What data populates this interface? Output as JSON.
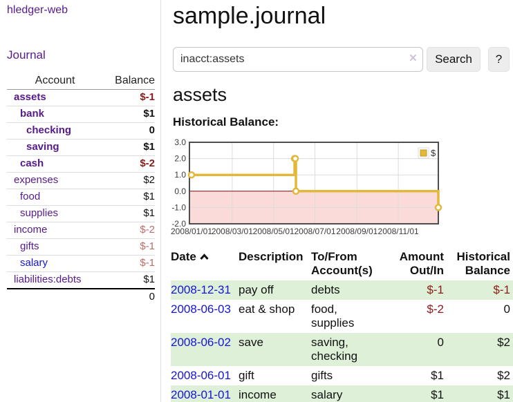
{
  "colors": {
    "link_purple": "#551a8b",
    "link_blue": "#1414dd",
    "negative_dark": "#8b1a1a",
    "negative_light": "#bd6a6a",
    "row_green": "#dff0d8",
    "chart_gold": "#e3b83a",
    "chart_negative_bg": "#fbdada",
    "chart_zero_line": "#7a0c0c"
  },
  "app": {
    "brand": "hledger-web"
  },
  "sidebar": {
    "nav_journal": "Journal",
    "accounts_table": {
      "account_header": "Account",
      "balance_header": "Balance",
      "rows": [
        {
          "name": "assets",
          "balance": "$-1",
          "level": 1,
          "strong": true
        },
        {
          "name": "bank",
          "balance": "$1",
          "level": 2,
          "strong": true
        },
        {
          "name": "checking",
          "balance": "0",
          "level": 3,
          "strong": true
        },
        {
          "name": "saving",
          "balance": "$1",
          "level": 3,
          "strong": true
        },
        {
          "name": "cash",
          "balance": "$-2",
          "level": 2,
          "strong": true
        },
        {
          "name": "expenses",
          "balance": "$2",
          "level": 1,
          "strong": false
        },
        {
          "name": "food",
          "balance": "$1",
          "level": 2,
          "strong": false
        },
        {
          "name": "supplies",
          "balance": "$1",
          "level": 2,
          "strong": false
        },
        {
          "name": "income",
          "balance": "$-2",
          "level": 1,
          "strong": false
        },
        {
          "name": "gifts",
          "balance": "$-1",
          "level": 2,
          "strong": false
        },
        {
          "name": "salary",
          "balance": "$-1",
          "level": 2,
          "strong": false,
          "link_color": "blue"
        },
        {
          "name": "liabilities:debts",
          "balance": "$1",
          "level": 1,
          "strong": false
        }
      ],
      "total": "0"
    }
  },
  "header": {
    "title": "sample.journal"
  },
  "search": {
    "value": "inacct:assets",
    "clear_icon": "×",
    "button_label": "Search",
    "help_label": "?"
  },
  "account_page": {
    "heading": "assets",
    "chart_label": "Historical Balance:"
  },
  "chart_data": {
    "type": "line",
    "step": true,
    "title": "Historical Balance:",
    "series": [
      {
        "name": "$",
        "points": [
          {
            "date": "2008-01-01",
            "value": 1
          },
          {
            "date": "2008-06-01",
            "value": 2
          },
          {
            "date": "2008-06-02",
            "value": 2
          },
          {
            "date": "2008-06-03",
            "value": 0
          },
          {
            "date": "2008-12-31",
            "value": -1
          }
        ]
      }
    ],
    "ylim": [
      -2,
      3
    ],
    "xlim": [
      "2008-01-01",
      "2008-12-31"
    ],
    "y_ticks": [
      "3.0",
      "2.0",
      "1.0",
      "0.0",
      "-1.0",
      "-2.0"
    ],
    "x_ticks": [
      "2008/01/01",
      "2008/03/01",
      "2008/05/01",
      "2008/07/01",
      "2008/09/01",
      "2008/11/01"
    ],
    "grid": true,
    "legend": {
      "position": "top-right",
      "label": "$"
    },
    "negative_region_shaded": true
  },
  "register_table": {
    "headers": [
      "Date",
      "Description",
      "To/From Account(s)",
      "Amount Out/In",
      "Historical Balance"
    ],
    "rows": [
      {
        "date": "2008-12-31",
        "description": "pay off",
        "accounts": "debts",
        "amount": "$-1",
        "balance": "$-1"
      },
      {
        "date": "2008-06-03",
        "description": "eat & shop",
        "accounts": "food, supplies",
        "amount": "$-2",
        "balance": "0"
      },
      {
        "date": "2008-06-02",
        "description": "save",
        "accounts": "saving, checking",
        "amount": "0",
        "balance": "$2"
      },
      {
        "date": "2008-06-01",
        "description": "gift",
        "accounts": "gifts",
        "amount": "$1",
        "balance": "$2"
      },
      {
        "date": "2008-01-01",
        "description": "income",
        "accounts": "salary",
        "amount": "$1",
        "balance": "$1"
      }
    ]
  }
}
